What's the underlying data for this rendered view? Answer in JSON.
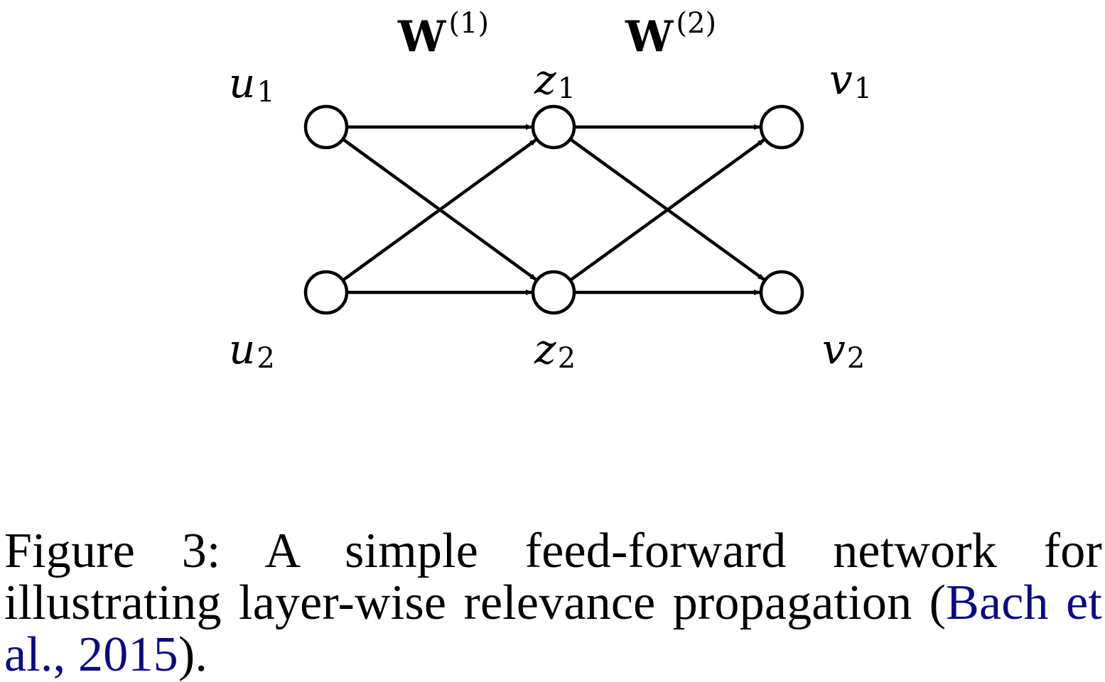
{
  "diagram": {
    "weight_labels": [
      {
        "base": "W",
        "sup": "(1)"
      },
      {
        "base": "W",
        "sup": "(2)"
      }
    ],
    "nodes": [
      {
        "id": "u1",
        "base": "u",
        "sub": "1"
      },
      {
        "id": "u2",
        "base": "u",
        "sub": "2"
      },
      {
        "id": "z1",
        "base": "z",
        "sub": "1"
      },
      {
        "id": "z2",
        "base": "z",
        "sub": "2"
      },
      {
        "id": "v1",
        "base": "v",
        "sub": "1"
      },
      {
        "id": "v2",
        "base": "v",
        "sub": "2"
      }
    ],
    "edges": [
      [
        "u1",
        "z1"
      ],
      [
        "u1",
        "z2"
      ],
      [
        "u2",
        "z1"
      ],
      [
        "u2",
        "z2"
      ],
      [
        "z1",
        "v1"
      ],
      [
        "z1",
        "v2"
      ],
      [
        "z2",
        "v1"
      ],
      [
        "z2",
        "v2"
      ]
    ]
  },
  "caption": {
    "text": "Figure 3:  A simple feed-forward network for illustrating layer-wise relevance propagation (",
    "citation": "Bach et al., 2015",
    "suffix": ")."
  },
  "colors": {
    "citation": "#0a0a80"
  }
}
